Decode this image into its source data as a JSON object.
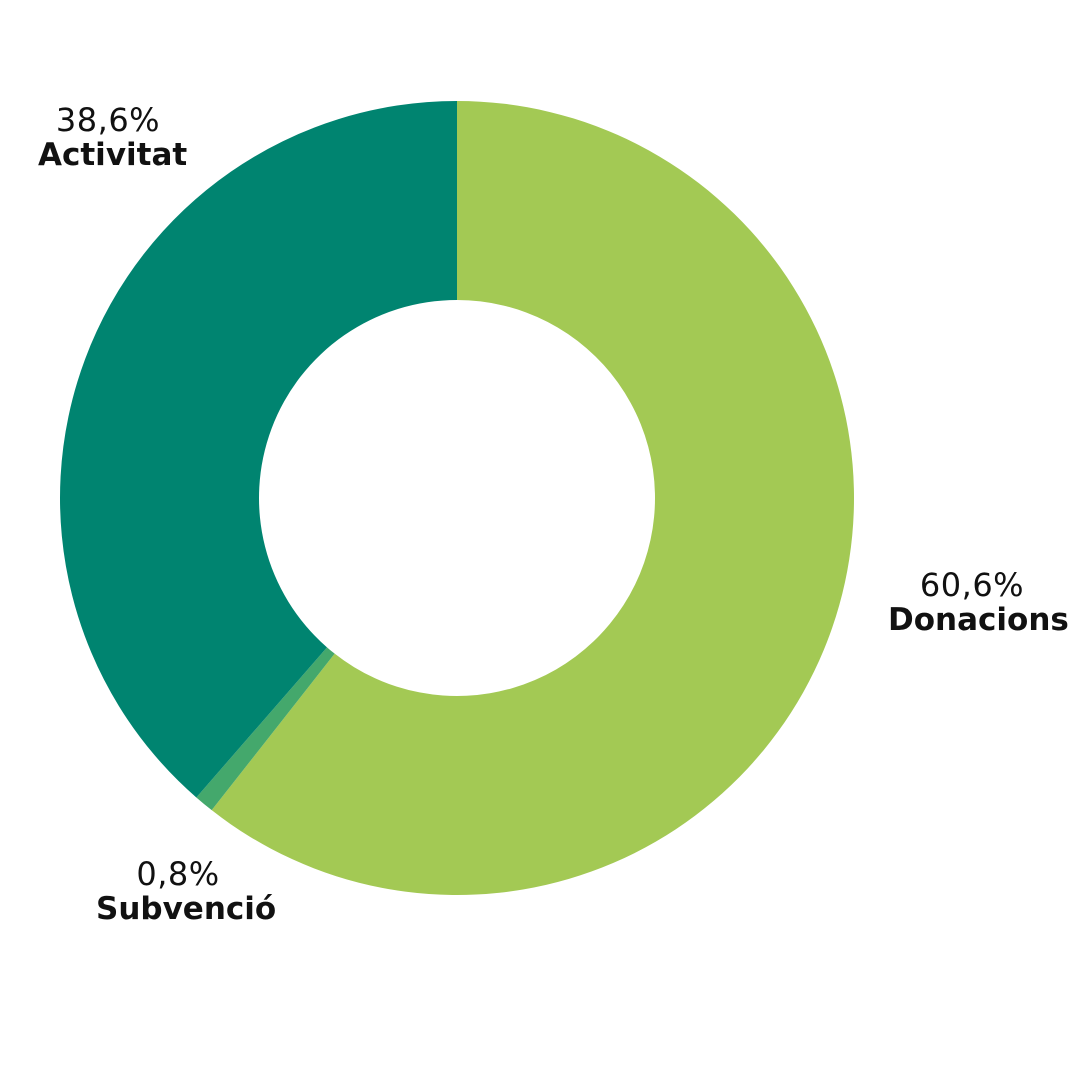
{
  "chart_data": {
    "type": "pie",
    "donut": true,
    "slices": [
      {
        "name": "Donacions",
        "value": 60.6,
        "label": "60,6%",
        "color": "#a3c954"
      },
      {
        "name": "Subvenció",
        "value": 0.8,
        "label": "0,8%",
        "color": "#44a86c"
      },
      {
        "name": "Activitat",
        "value": 38.6,
        "label": "38,6%",
        "color": "#008470"
      }
    ],
    "start_angle_deg": 0,
    "direction": "clockwise",
    "legend": "none"
  }
}
